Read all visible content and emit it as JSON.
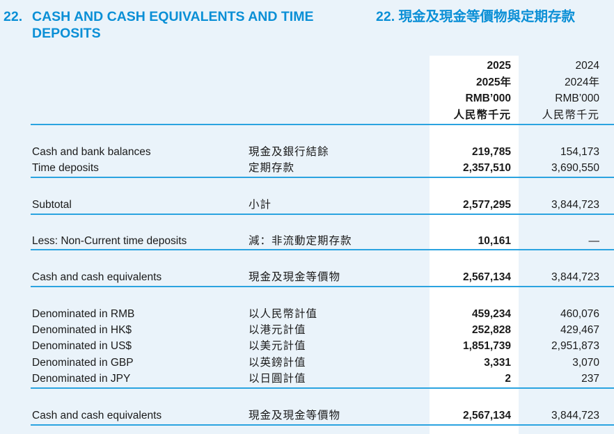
{
  "title": {
    "number_en": "22.",
    "line1_en": "CASH AND CASH EQUIVALENTS AND TIME",
    "line2_en": "DEPOSITS",
    "zh": "22. 現金及現金等價物與定期存款"
  },
  "header": {
    "current": {
      "year": "2025",
      "year_zh": "2025年",
      "unit": "RMB’000",
      "unit_zh": "人民幣千元"
    },
    "prior": {
      "year": "2024",
      "year_zh": "2024年",
      "unit": "RMB’000",
      "unit_zh": "人民幣千元"
    }
  },
  "rows": [
    {
      "en": "Cash and bank balances",
      "zh": "現金及銀行結餘",
      "current": "219,785",
      "prior": "154,173"
    },
    {
      "en": "Time deposits",
      "zh": "定期存款",
      "current": "2,357,510",
      "prior": "3,690,550"
    },
    {
      "en": "Subtotal",
      "zh": "小計",
      "current": "2,577,295",
      "prior": "3,844,723"
    },
    {
      "en": "Less: Non-Current time deposits",
      "zh": "減：非流動定期存款",
      "current": "10,161",
      "prior": "—"
    },
    {
      "en": "Cash and cash equivalents",
      "zh": "現金及現金等價物",
      "current": "2,567,134",
      "prior": "3,844,723"
    },
    {
      "en": "Denominated in RMB",
      "zh": "以人民幣計值",
      "current": "459,234",
      "prior": "460,076"
    },
    {
      "en": "Denominated in HK$",
      "zh": "以港元計值",
      "current": "252,828",
      "prior": "429,467"
    },
    {
      "en": "Denominated in US$",
      "zh": "以美元計值",
      "current": "1,851,739",
      "prior": "2,951,873"
    },
    {
      "en": "Denominated in GBP",
      "zh": "以英鎊計值",
      "current": "3,331",
      "prior": "3,070"
    },
    {
      "en": "Denominated in JPY",
      "zh": "以日圓計值",
      "current": "2",
      "prior": "237"
    },
    {
      "en": "Cash and cash equivalents",
      "zh": "現金及現金等價物",
      "current": "2,567,134",
      "prior": "3,844,723"
    }
  ],
  "colors": {
    "accent": "#0a8fd6",
    "rule": "#2aa3e0",
    "background": "#eaf3fa",
    "highlight_column": "#ffffff"
  }
}
